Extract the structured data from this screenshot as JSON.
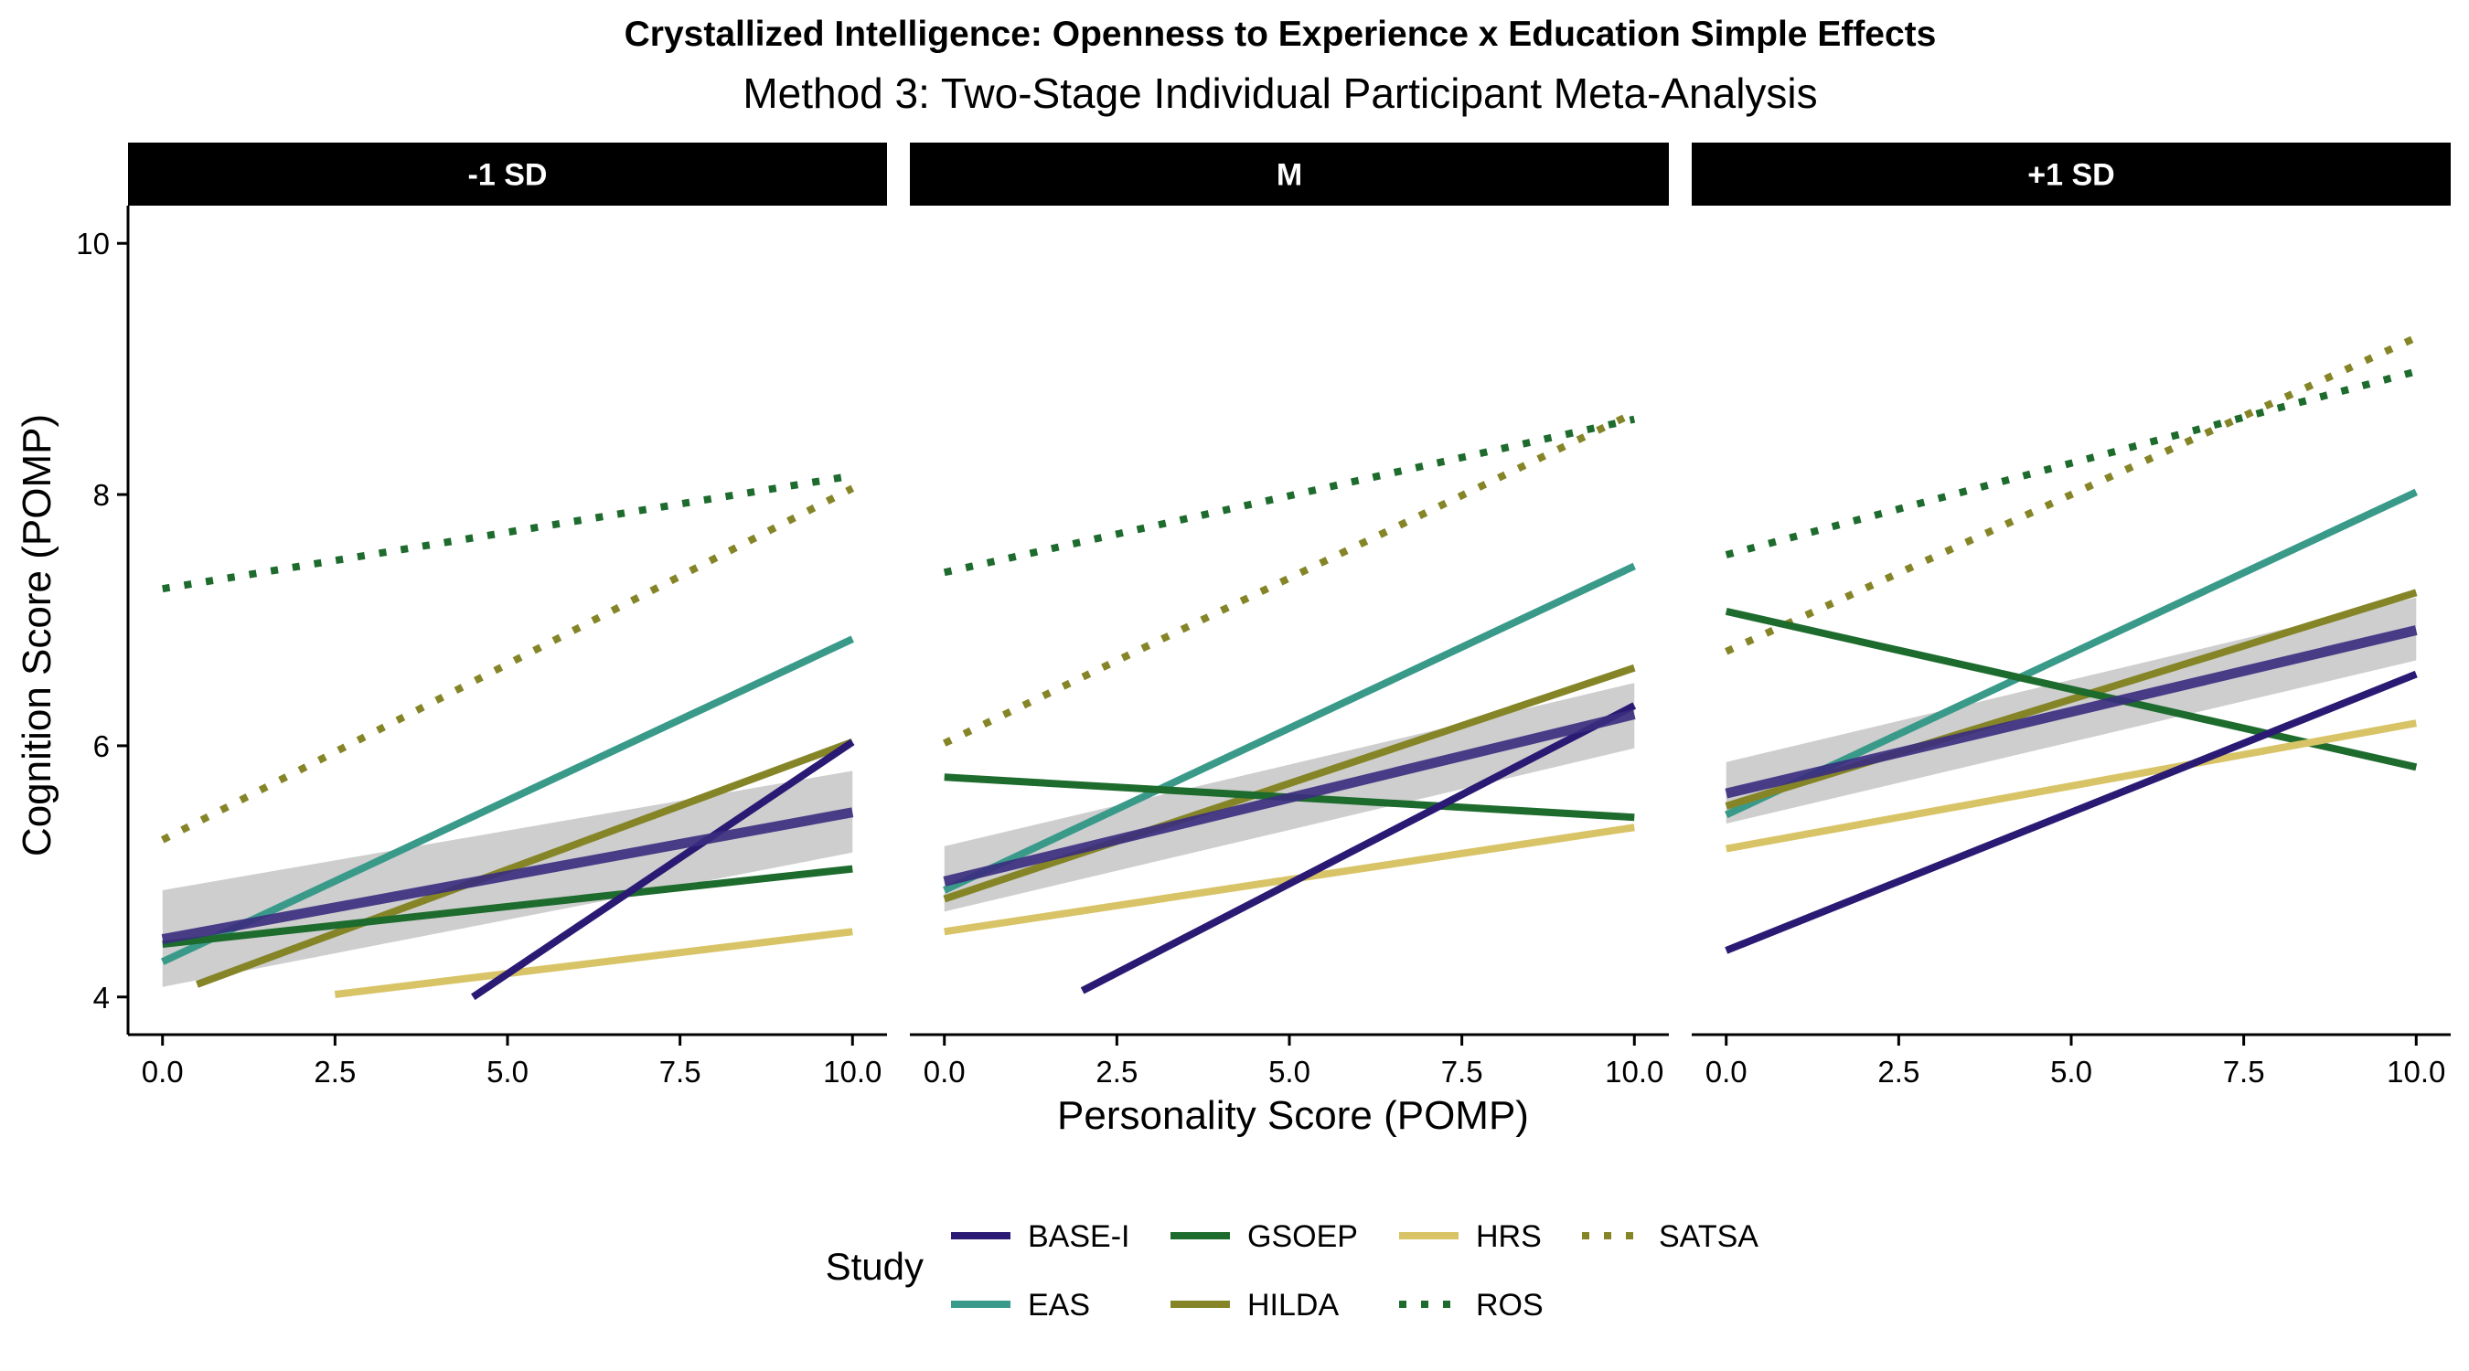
{
  "chart_data": {
    "type": "line",
    "title": "Crystallized Intelligence: Openness to Experience x Education Simple Effects",
    "subtitle": "Method 3: Two-Stage Individual Participant Meta-Analysis",
    "xlabel": "Personality Score (POMP)",
    "ylabel": "Cognition Score (POMP)",
    "xlim": [
      -0.5,
      10.5
    ],
    "ylim": [
      3.7,
      10.3
    ],
    "x_ticks": [
      0.0,
      2.5,
      5.0,
      7.5,
      10.0
    ],
    "x_tick_labels": [
      "0.0",
      "2.5",
      "5.0",
      "7.5",
      "10.0"
    ],
    "y_ticks": [
      4,
      6,
      8,
      10
    ],
    "y_tick_labels": [
      "4",
      "6",
      "8",
      "10"
    ],
    "grid": false,
    "legend": {
      "title": "Study",
      "position": "bottom",
      "items": [
        {
          "name": "BASE-I",
          "color": "#2b1a73",
          "dash": "solid"
        },
        {
          "name": "EAS",
          "color": "#3a9a8a",
          "dash": "solid"
        },
        {
          "name": "GSOEP",
          "color": "#1e6b2e",
          "dash": "solid"
        },
        {
          "name": "HILDA",
          "color": "#858528",
          "dash": "solid"
        },
        {
          "name": "HRS",
          "color": "#d8c466",
          "dash": "solid"
        },
        {
          "name": "ROS",
          "color": "#1e6b2e",
          "dash": "dotted"
        },
        {
          "name": "SATSA",
          "color": "#858528",
          "dash": "dotted"
        }
      ]
    },
    "pooled_color": "#3a2d80",
    "ribbon_color": "#bdbdbd",
    "panels": [
      {
        "label": "-1 SD",
        "series": [
          {
            "name": "SATSA",
            "x": [
              0,
              10
            ],
            "y": [
              5.25,
              8.05
            ]
          },
          {
            "name": "ROS",
            "x": [
              0,
              10
            ],
            "y": [
              7.25,
              8.15
            ]
          },
          {
            "name": "EAS",
            "x": [
              0,
              10
            ],
            "y": [
              4.28,
              6.85
            ]
          },
          {
            "name": "HILDA",
            "x": [
              0.5,
              10
            ],
            "y": [
              4.1,
              6.03
            ]
          },
          {
            "name": "GSOEP",
            "x": [
              0,
              10
            ],
            "y": [
              4.42,
              5.02
            ]
          },
          {
            "name": "HRS",
            "x": [
              2.5,
              10
            ],
            "y": [
              4.02,
              4.52
            ]
          },
          {
            "name": "BASE-I",
            "x": [
              4.5,
              10
            ],
            "y": [
              4.0,
              6.03
            ]
          }
        ],
        "pooled": {
          "x": [
            0,
            10
          ],
          "y": [
            4.46,
            5.47
          ],
          "lower": [
            4.08,
            5.15
          ],
          "upper": [
            4.85,
            5.8
          ]
        }
      },
      {
        "label": "M",
        "series": [
          {
            "name": "SATSA",
            "x": [
              0,
              10
            ],
            "y": [
              6.02,
              8.65
            ]
          },
          {
            "name": "ROS",
            "x": [
              0,
              10
            ],
            "y": [
              7.38,
              8.6
            ]
          },
          {
            "name": "EAS",
            "x": [
              0,
              10
            ],
            "y": [
              4.85,
              7.43
            ]
          },
          {
            "name": "HILDA",
            "x": [
              0,
              10
            ],
            "y": [
              4.78,
              6.62
            ]
          },
          {
            "name": "GSOEP",
            "x": [
              0,
              10
            ],
            "y": [
              5.75,
              5.43
            ]
          },
          {
            "name": "HRS",
            "x": [
              0,
              10
            ],
            "y": [
              4.52,
              5.35
            ]
          },
          {
            "name": "BASE-I",
            "x": [
              2,
              10
            ],
            "y": [
              4.05,
              6.32
            ]
          }
        ],
        "pooled": {
          "x": [
            0,
            10
          ],
          "y": [
            4.92,
            6.25
          ],
          "lower": [
            4.68,
            5.98
          ],
          "upper": [
            5.2,
            6.5
          ]
        }
      },
      {
        "label": "+1 SD",
        "series": [
          {
            "name": "SATSA",
            "x": [
              0,
              10
            ],
            "y": [
              6.75,
              9.25
            ]
          },
          {
            "name": "ROS",
            "x": [
              0,
              10
            ],
            "y": [
              7.52,
              8.98
            ]
          },
          {
            "name": "EAS",
            "x": [
              0,
              10
            ],
            "y": [
              5.45,
              8.02
            ]
          },
          {
            "name": "HILDA",
            "x": [
              0,
              10
            ],
            "y": [
              5.52,
              7.22
            ]
          },
          {
            "name": "GSOEP",
            "x": [
              0,
              10
            ],
            "y": [
              7.07,
              5.83
            ]
          },
          {
            "name": "HRS",
            "x": [
              0,
              10
            ],
            "y": [
              5.18,
              6.18
            ]
          },
          {
            "name": "BASE-I",
            "x": [
              0,
              10
            ],
            "y": [
              4.37,
              6.57
            ]
          }
        ],
        "pooled": {
          "x": [
            0,
            10
          ],
          "y": [
            5.62,
            6.92
          ],
          "lower": [
            5.38,
            6.68
          ],
          "upper": [
            5.87,
            7.18
          ]
        }
      }
    ]
  }
}
